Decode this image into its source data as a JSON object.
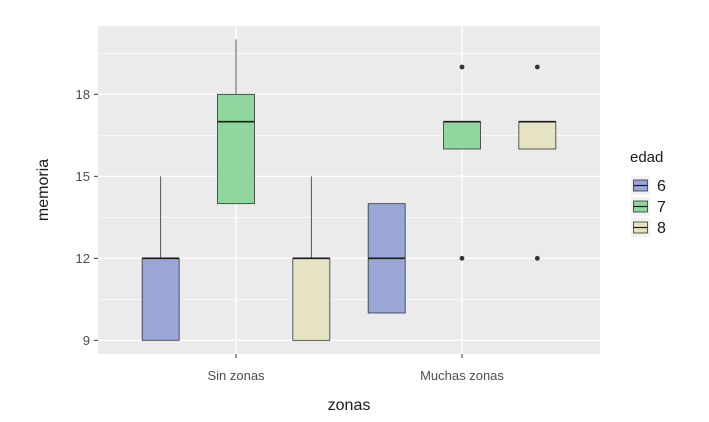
{
  "chart_data": {
    "type": "boxplot",
    "xlabel": "zonas",
    "ylabel": "memoria",
    "categories": [
      "Sin zonas",
      "Muchas zonas"
    ],
    "y_ticks": [
      9,
      12,
      15,
      18
    ],
    "ylim": [
      8.5,
      20.5
    ],
    "grid": true,
    "legend": {
      "title": "edad",
      "placement": "right",
      "entries": [
        "6",
        "7",
        "8"
      ]
    },
    "series": [
      {
        "name": "6",
        "color": "#9aa6d6",
        "boxes": [
          {
            "category": "Sin zonas",
            "lower_whisker": 9,
            "q1": 9,
            "median": 12,
            "q3": 12,
            "upper_whisker": 15,
            "outliers": []
          },
          {
            "category": "Muchas zonas",
            "lower_whisker": 10,
            "q1": 10,
            "median": 12,
            "q3": 14,
            "upper_whisker": 14,
            "outliers": []
          }
        ]
      },
      {
        "name": "7",
        "color": "#8fd79f",
        "boxes": [
          {
            "category": "Sin zonas",
            "lower_whisker": 14,
            "q1": 14,
            "median": 17,
            "q3": 18,
            "upper_whisker": 20,
            "outliers": []
          },
          {
            "category": "Muchas zonas",
            "lower_whisker": 16,
            "q1": 16,
            "median": 17,
            "q3": 17,
            "upper_whisker": 17,
            "outliers": [
              12,
              19
            ]
          }
        ]
      },
      {
        "name": "8",
        "color": "#e6e3c3",
        "boxes": [
          {
            "category": "Sin zonas",
            "lower_whisker": 9,
            "q1": 9,
            "median": 12,
            "q3": 12,
            "upper_whisker": 15,
            "outliers": []
          },
          {
            "category": "Muchas zonas",
            "lower_whisker": 16,
            "q1": 16,
            "median": 17,
            "q3": 17,
            "upper_whisker": 17,
            "outliers": [
              12,
              19
            ]
          }
        ]
      }
    ]
  }
}
